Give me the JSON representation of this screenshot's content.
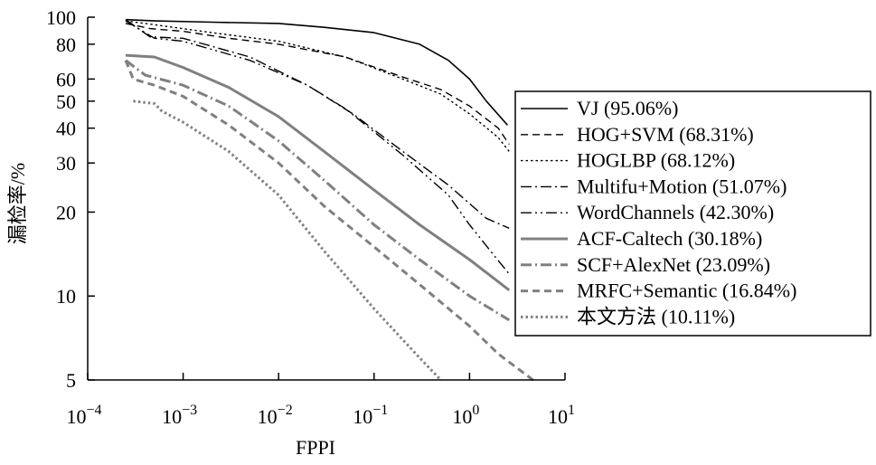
{
  "chart_data": {
    "type": "line",
    "xlabel": "FPPI",
    "ylabel": "漏检率/%",
    "x_scale": "log",
    "y_scale": "log",
    "xlim": [
      0.0001,
      10
    ],
    "ylim": [
      5,
      100
    ],
    "x_ticks": [
      {
        "value": 0.0001,
        "base": "10",
        "exp": "−4"
      },
      {
        "value": 0.001,
        "base": "10",
        "exp": "−3"
      },
      {
        "value": 0.01,
        "base": "10",
        "exp": "−2"
      },
      {
        "value": 0.1,
        "base": "10",
        "exp": "−1"
      },
      {
        "value": 1,
        "base": "10",
        "exp": "0"
      },
      {
        "value": 10,
        "base": "10",
        "exp": "1"
      }
    ],
    "y_ticks": [
      {
        "value": 100,
        "label": "100"
      },
      {
        "value": 80,
        "label": "80"
      },
      {
        "value": 60,
        "label": "60"
      },
      {
        "value": 50,
        "label": "50"
      },
      {
        "value": 40,
        "label": "40"
      },
      {
        "value": 30,
        "label": "30"
      },
      {
        "value": 20,
        "label": "20"
      },
      {
        "value": 10,
        "label": "10"
      },
      {
        "value": 5,
        "label": "5"
      }
    ],
    "grid": false,
    "legend_position": "right",
    "series": [
      {
        "name": "VJ (95.06%)",
        "color": "#000000",
        "dash": "solid",
        "width": 1.6,
        "points": [
          [
            0.00025,
            98
          ],
          [
            0.0005,
            97
          ],
          [
            0.002,
            96
          ],
          [
            0.01,
            95
          ],
          [
            0.03,
            92
          ],
          [
            0.1,
            88
          ],
          [
            0.3,
            80
          ],
          [
            0.6,
            70
          ],
          [
            1.0,
            60
          ],
          [
            1.5,
            50
          ],
          [
            2.5,
            41
          ]
        ]
      },
      {
        "name": "HOG+SVM (68.31%)",
        "color": "#000000",
        "dash": "dashed",
        "width": 1.4,
        "points": [
          [
            0.00025,
            95
          ],
          [
            0.00045,
            91
          ],
          [
            0.001,
            89
          ],
          [
            0.003,
            84
          ],
          [
            0.01,
            80
          ],
          [
            0.05,
            72
          ],
          [
            0.2,
            61
          ],
          [
            0.5,
            55
          ],
          [
            1.0,
            48
          ],
          [
            2.0,
            40
          ],
          [
            2.6,
            35
          ]
        ]
      },
      {
        "name": "HOGLBP (68.12%)",
        "color": "#000000",
        "dash": "dotted",
        "width": 1.4,
        "points": [
          [
            0.00025,
            97
          ],
          [
            0.0005,
            94
          ],
          [
            0.002,
            88
          ],
          [
            0.01,
            82
          ],
          [
            0.05,
            72
          ],
          [
            0.2,
            60
          ],
          [
            0.5,
            53
          ],
          [
            1.0,
            45
          ],
          [
            2.0,
            37
          ],
          [
            2.6,
            33
          ]
        ]
      },
      {
        "name": "Multifu+Motion (51.07%)",
        "color": "#000000",
        "dash": "dashdot",
        "width": 1.4,
        "points": [
          [
            0.00025,
            98
          ],
          [
            0.00045,
            85
          ],
          [
            0.001,
            84
          ],
          [
            0.005,
            72
          ],
          [
            0.02,
            57
          ],
          [
            0.06,
            45
          ],
          [
            0.2,
            33
          ],
          [
            0.6,
            25
          ],
          [
            1.5,
            19
          ],
          [
            2.6,
            17.5
          ]
        ]
      },
      {
        "name": "WordChannels (42.30%)",
        "color": "#000000",
        "dash": "dashdotdot",
        "width": 1.4,
        "points": [
          [
            0.00025,
            97
          ],
          [
            0.0005,
            84
          ],
          [
            0.001,
            82
          ],
          [
            0.005,
            70
          ],
          [
            0.02,
            57
          ],
          [
            0.05,
            47
          ],
          [
            0.2,
            32
          ],
          [
            0.6,
            23
          ],
          [
            1.0,
            18
          ],
          [
            1.8,
            14
          ],
          [
            2.6,
            12
          ]
        ]
      },
      {
        "name": "ACF-Caltech (30.18%)",
        "color": "#808080",
        "dash": "solid",
        "width": 3,
        "points": [
          [
            0.00025,
            73
          ],
          [
            0.0005,
            72
          ],
          [
            0.001,
            66
          ],
          [
            0.003,
            56
          ],
          [
            0.01,
            44
          ],
          [
            0.03,
            33
          ],
          [
            0.1,
            24
          ],
          [
            0.3,
            18
          ],
          [
            1.0,
            13.5
          ],
          [
            2.6,
            10.5
          ]
        ]
      },
      {
        "name": "SCF+AlexNet (23.09%)",
        "color": "#808080",
        "dash": "dashdot",
        "width": 3,
        "points": [
          [
            0.00025,
            70
          ],
          [
            0.0004,
            62
          ],
          [
            0.001,
            57
          ],
          [
            0.003,
            48
          ],
          [
            0.01,
            36
          ],
          [
            0.03,
            26
          ],
          [
            0.1,
            18
          ],
          [
            0.3,
            13.5
          ],
          [
            1.0,
            10
          ],
          [
            2.6,
            8.2
          ]
        ]
      },
      {
        "name": "MRFC+Semantic (16.84%)",
        "color": "#808080",
        "dash": "dashed",
        "width": 3,
        "points": [
          [
            0.00025,
            70
          ],
          [
            0.0003,
            60
          ],
          [
            0.0005,
            57
          ],
          [
            0.001,
            52
          ],
          [
            0.003,
            41
          ],
          [
            0.01,
            30
          ],
          [
            0.03,
            21
          ],
          [
            0.1,
            15
          ],
          [
            0.3,
            11
          ],
          [
            1.0,
            7.8
          ],
          [
            2.0,
            6.2
          ],
          [
            5.0,
            4.9
          ]
        ]
      },
      {
        "name": "本文方法 (10.11%)",
        "color": "#808080",
        "dash": "dotted",
        "width": 3,
        "points": [
          [
            0.0003,
            50
          ],
          [
            0.0005,
            49
          ],
          [
            0.0006,
            46
          ],
          [
            0.001,
            42
          ],
          [
            0.003,
            33
          ],
          [
            0.01,
            23
          ],
          [
            0.03,
            14.5
          ],
          [
            0.1,
            9
          ],
          [
            0.3,
            6
          ],
          [
            0.5,
            5
          ]
        ]
      }
    ]
  }
}
